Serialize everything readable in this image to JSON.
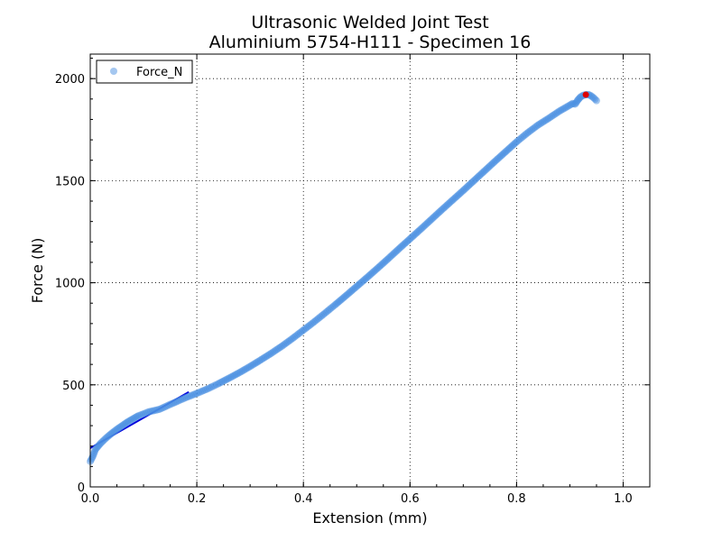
{
  "chart_data": {
    "type": "scatter",
    "title": "Ultrasonic Welded Joint Test",
    "subtitle": "Aluminium 5754-H111 - Specimen 16",
    "xlabel": "Extension (mm)",
    "ylabel": "Force (N)",
    "xlim": [
      0.0,
      1.05
    ],
    "ylim": [
      0,
      2120
    ],
    "x_ticks": [
      0.0,
      0.2,
      0.4,
      0.6,
      0.8,
      1.0
    ],
    "x_tick_labels": [
      "0.0",
      "0.2",
      "0.4",
      "0.6",
      "0.8",
      "1.0"
    ],
    "y_ticks": [
      0,
      500,
      1000,
      1500,
      2000
    ],
    "y_tick_labels": [
      "0",
      "500",
      "1000",
      "1500",
      "2000"
    ],
    "grid": true,
    "legend": {
      "placement": "top-left",
      "entries": [
        "Force_N"
      ]
    },
    "series": [
      {
        "name": "Force_N",
        "color": "#4a90e2",
        "points": [
          [
            0.0,
            125
          ],
          [
            0.005,
            150
          ],
          [
            0.01,
            185
          ],
          [
            0.02,
            215
          ],
          [
            0.03,
            240
          ],
          [
            0.04,
            262
          ],
          [
            0.05,
            282
          ],
          [
            0.06,
            300
          ],
          [
            0.07,
            318
          ],
          [
            0.08,
            333
          ],
          [
            0.09,
            348
          ],
          [
            0.1,
            358
          ],
          [
            0.11,
            368
          ],
          [
            0.12,
            374
          ],
          [
            0.13,
            380
          ],
          [
            0.14,
            392
          ],
          [
            0.15,
            404
          ],
          [
            0.16,
            415
          ],
          [
            0.17,
            427
          ],
          [
            0.18,
            438
          ],
          [
            0.2,
            458
          ],
          [
            0.22,
            480
          ],
          [
            0.24,
            505
          ],
          [
            0.26,
            532
          ],
          [
            0.28,
            560
          ],
          [
            0.3,
            590
          ],
          [
            0.32,
            622
          ],
          [
            0.34,
            655
          ],
          [
            0.36,
            690
          ],
          [
            0.38,
            728
          ],
          [
            0.4,
            768
          ],
          [
            0.42,
            808
          ],
          [
            0.44,
            850
          ],
          [
            0.46,
            893
          ],
          [
            0.48,
            937
          ],
          [
            0.5,
            982
          ],
          [
            0.52,
            1027
          ],
          [
            0.54,
            1073
          ],
          [
            0.56,
            1120
          ],
          [
            0.58,
            1168
          ],
          [
            0.6,
            1215
          ],
          [
            0.62,
            1262
          ],
          [
            0.64,
            1310
          ],
          [
            0.66,
            1358
          ],
          [
            0.68,
            1405
          ],
          [
            0.7,
            1452
          ],
          [
            0.72,
            1500
          ],
          [
            0.74,
            1548
          ],
          [
            0.76,
            1596
          ],
          [
            0.78,
            1643
          ],
          [
            0.8,
            1690
          ],
          [
            0.82,
            1733
          ],
          [
            0.84,
            1772
          ],
          [
            0.86,
            1805
          ],
          [
            0.88,
            1840
          ],
          [
            0.9,
            1870
          ],
          [
            0.905,
            1878
          ],
          [
            0.91,
            1875
          ],
          [
            0.915,
            1895
          ],
          [
            0.92,
            1910
          ],
          [
            0.925,
            1918
          ],
          [
            0.93,
            1921
          ],
          [
            0.935,
            1922
          ],
          [
            0.94,
            1915
          ],
          [
            0.945,
            1905
          ],
          [
            0.95,
            1892
          ]
        ]
      },
      {
        "name": "",
        "color": "#e00000",
        "points": [
          [
            0.93,
            1921
          ]
        ]
      }
    ],
    "fit_line": {
      "color": "#0000dd",
      "x": [
        0.0,
        0.185
      ],
      "y": [
        190,
        465
      ]
    }
  }
}
